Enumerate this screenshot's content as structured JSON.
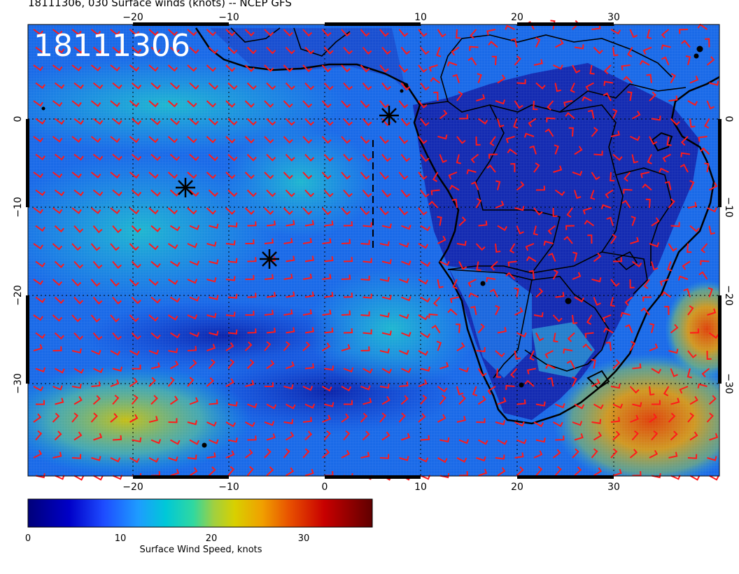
{
  "title": "18111306, 030 Surface winds (knots) -- NCEP GFS",
  "stamp": "18111306",
  "map": {
    "lon_ticks": [
      "−20",
      "−10",
      "0",
      "10",
      "20",
      "30"
    ],
    "lat_ticks": [
      "0",
      "−10",
      "−20",
      "−30"
    ],
    "storm_markers": 3
  },
  "colorbar": {
    "label": "Surface Wind Speed, knots",
    "ticks": [
      "0",
      "10",
      "20",
      "30"
    ],
    "colors": [
      "#00008b",
      "#0000d0",
      "#1e4cff",
      "#1e9cff",
      "#00c8d8",
      "#30d8a0",
      "#a0d040",
      "#d8d000",
      "#f0a000",
      "#e85000",
      "#c80000",
      "#700000"
    ]
  },
  "chart_data": {
    "type": "heatmap",
    "title": "18111306, 030 Surface winds (knots) -- NCEP GFS",
    "xlabel": "",
    "ylabel": "",
    "x_ticks": [
      -20,
      -10,
      0,
      10,
      20,
      30
    ],
    "y_ticks": [
      0,
      -10,
      -20,
      -30
    ],
    "xlim": [
      -30,
      40
    ],
    "ylim": [
      -40,
      10
    ],
    "colorbar": {
      "label": "Surface Wind Speed, knots",
      "range": [
        0,
        36
      ],
      "ticks": [
        0,
        10,
        20,
        30
      ]
    }
  }
}
